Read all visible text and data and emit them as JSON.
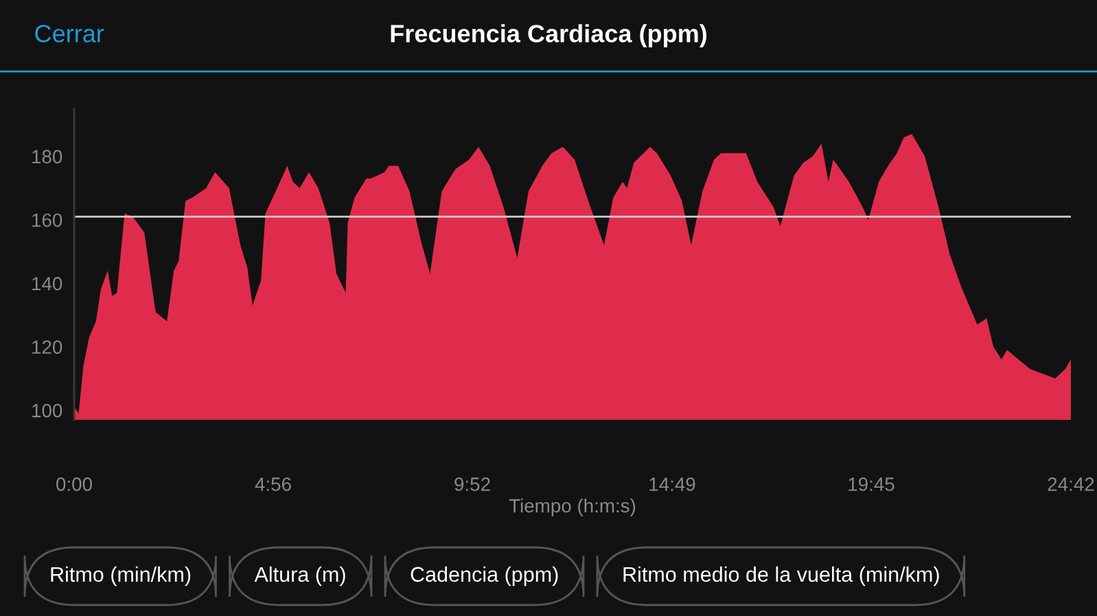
{
  "chart_data": {
    "type": "area",
    "title": "Frecuencia Cardiaca (ppm)",
    "xlabel": "Tiempo (h:m:s)",
    "annotations": [
      "Cerrar",
      "Ritmo (min/km)",
      "Altura (m)",
      "Cadencia (ppm)",
      "Ritmo medio de la vuelta (min/km)"
    ],
    "series": [
      {
        "color": "#e02c4c",
        "x": [
          0,
          0.11,
          0.23,
          0.37,
          0.54,
          0.66,
          0.83,
          0.94,
          1.06,
          1.25,
          1.45,
          1.74,
          1.96,
          2.02,
          2.3,
          2.47,
          2.59,
          2.76,
          2.93,
          3.27,
          3.49,
          3.84,
          4.12,
          4.29,
          4.42,
          4.63,
          4.74,
          5.03,
          5.28,
          5.42,
          5.59,
          5.82,
          6.05,
          6.33,
          6.5,
          6.73,
          6.78,
          6.95,
          7.24,
          7.35,
          7.69,
          7.8,
          8.03,
          8.31,
          8.6,
          8.82,
          9.11,
          9.45,
          9.79,
          10.02,
          10.3,
          10.64,
          10.98,
          11.26,
          11.6,
          11.83,
          12.11,
          12.4,
          12.74,
          13.13,
          13.36,
          13.59,
          13.7,
          13.87,
          14.27,
          14.44,
          14.78,
          15.06,
          15.29,
          15.57,
          15.8,
          15.86,
          16.03,
          16.31,
          16.65,
          16.93,
          17.33,
          17.5,
          17.84,
          18.07,
          18.3,
          18.52,
          18.69,
          18.81,
          19.2,
          19.54,
          19.68,
          19.94,
          20.17,
          20.39,
          20.56,
          20.76,
          21.08,
          21.42,
          21.7,
          21.98,
          22.38,
          22.61,
          22.78,
          22.98,
          23.12,
          23.69,
          24.31,
          24.56,
          24.7
        ],
        "values": [
          101,
          99,
          114,
          123,
          128,
          138,
          144,
          136,
          137,
          162,
          161,
          156,
          136,
          131,
          128,
          144,
          147,
          166,
          167,
          170,
          175,
          170,
          152,
          145,
          133,
          141,
          162,
          170,
          177,
          172,
          170,
          175,
          170,
          159,
          143,
          137,
          159,
          167,
          173,
          173,
          175,
          177,
          177,
          169,
          153,
          143,
          169,
          176,
          179,
          183,
          177,
          164,
          148,
          169,
          177,
          181,
          183,
          179,
          166,
          152,
          167,
          172,
          170,
          178,
          183,
          181,
          174,
          166,
          152,
          169,
          177,
          179,
          181,
          181,
          181,
          172,
          164,
          158,
          174,
          178,
          180,
          184,
          172,
          179,
          172,
          164,
          160,
          172,
          177,
          181,
          186,
          187,
          180,
          164,
          149,
          139,
          127,
          129,
          120,
          116,
          119,
          113,
          110,
          113,
          116
        ]
      }
    ],
    "xlim": [
      0,
      24.7
    ],
    "ylim": [
      97,
      195
    ],
    "xticks": [
      {
        "value": 0,
        "label": "0:00"
      },
      {
        "value": 4.933,
        "label": "4:56"
      },
      {
        "value": 9.867,
        "label": "9:52"
      },
      {
        "value": 14.817,
        "label": "14:49"
      },
      {
        "value": 19.75,
        "label": "19:45"
      },
      {
        "value": 24.7,
        "label": "24:42"
      }
    ],
    "yticks": [
      100,
      120,
      140,
      160,
      180
    ],
    "ref_lines": [
      {
        "axis": "y",
        "value": 161,
        "color": "#d0d0d0"
      }
    ],
    "grid": false,
    "legend": false
  }
}
